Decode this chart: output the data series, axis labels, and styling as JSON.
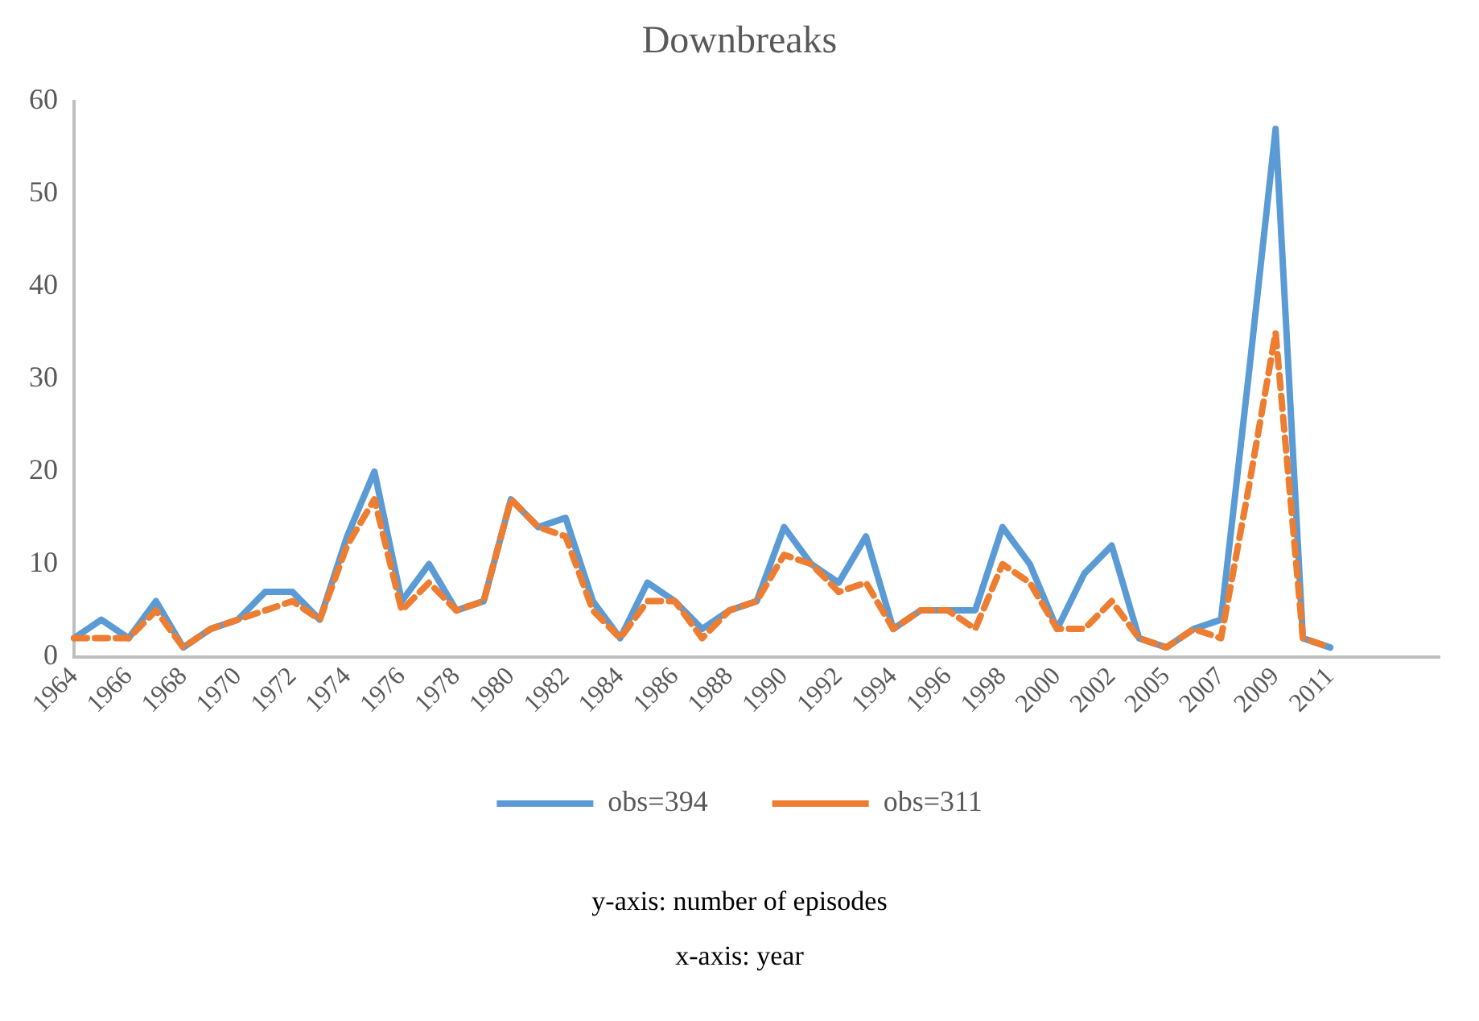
{
  "chart_data": {
    "type": "line",
    "title": "Downbreaks",
    "categories": [
      "1964",
      null,
      "1966",
      null,
      "1968",
      null,
      "1970",
      null,
      "1972",
      null,
      "1974",
      null,
      "1976",
      null,
      "1978",
      null,
      "1980",
      null,
      "1982",
      null,
      "1984",
      null,
      "1986",
      null,
      "1988",
      null,
      "1990",
      null,
      "1992",
      null,
      "1994",
      null,
      "1996",
      null,
      "1998",
      null,
      "2000",
      null,
      "2002",
      null,
      "2005",
      null,
      "2007",
      null,
      "2009",
      null,
      "2011",
      null,
      null,
      null,
      null
    ],
    "series": [
      {
        "name": "obs=394",
        "color": "#5b9bd5",
        "line_style": "solid",
        "values": [
          2,
          4,
          2,
          6,
          1,
          3,
          4,
          7,
          7,
          4,
          13,
          20,
          6,
          10,
          5,
          6,
          17,
          14,
          15,
          6,
          2,
          8,
          6,
          3,
          5,
          6,
          14,
          10,
          8,
          13,
          3,
          5,
          5,
          5,
          14,
          10,
          3,
          9,
          12,
          2,
          1,
          3,
          4,
          30,
          57,
          2,
          1,
          null,
          null,
          null,
          null
        ]
      },
      {
        "name": "obs=311",
        "color": "#ed7d31",
        "line_style": "dashed",
        "values": [
          2,
          2,
          2,
          5,
          1,
          3,
          4,
          5,
          6,
          4,
          12,
          17,
          5,
          8,
          5,
          6,
          17,
          14,
          13,
          5,
          2,
          6,
          6,
          2,
          5,
          6,
          11,
          10,
          7,
          8,
          3,
          5,
          5,
          3,
          10,
          8,
          3,
          3,
          6,
          2,
          1,
          3,
          2,
          18,
          35,
          2,
          1,
          null,
          null,
          null,
          null
        ]
      }
    ],
    "ylim": [
      0,
      60
    ],
    "yticks": [
      0,
      10,
      20,
      30,
      40,
      50,
      60
    ],
    "grid": false,
    "legend": "bottom",
    "marker": "none",
    "annotations": [
      "y-axis: number of episodes",
      "x-axis: year"
    ]
  }
}
